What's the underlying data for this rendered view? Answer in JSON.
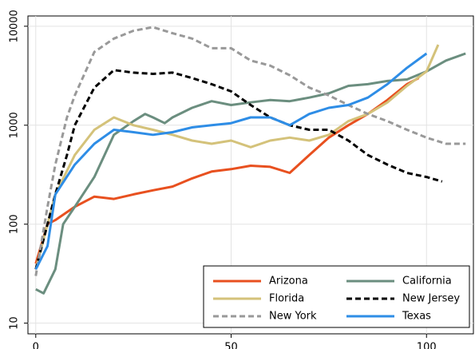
{
  "chart_data": {
    "type": "line",
    "log_y": true,
    "grid": true,
    "legend": "bottom-right",
    "xlim": [
      -2,
      112
    ],
    "xticks": [
      0,
      50,
      100
    ],
    "ylim": [
      7.8,
      12700
    ],
    "yticks": [
      10,
      100,
      1000,
      10000
    ],
    "series": [
      {
        "name": "Arizona",
        "color": "#e8501f",
        "linestyle": "solid",
        "x": [
          0,
          3,
          5,
          10,
          15,
          20,
          25,
          30,
          35,
          40,
          45,
          50,
          55,
          60,
          65,
          70,
          75,
          80,
          85,
          90,
          95,
          98
        ],
        "values": [
          40,
          100,
          110,
          150,
          190,
          180,
          200,
          220,
          240,
          290,
          340,
          360,
          390,
          380,
          330,
          500,
          750,
          1000,
          1300,
          1800,
          2600,
          3000
        ]
      },
      {
        "name": "California",
        "color": "#6b8e7f",
        "linestyle": "solid",
        "x": [
          0,
          2,
          5,
          7,
          10,
          15,
          20,
          25,
          28,
          30,
          33,
          35,
          40,
          45,
          50,
          55,
          60,
          65,
          70,
          75,
          80,
          85,
          90,
          95,
          100,
          105,
          110
        ],
        "values": [
          22,
          20,
          35,
          100,
          150,
          300,
          800,
          1100,
          1300,
          1200,
          1050,
          1200,
          1500,
          1750,
          1600,
          1700,
          1800,
          1750,
          1900,
          2100,
          2500,
          2600,
          2800,
          2900,
          3500,
          4500,
          5300
        ]
      },
      {
        "name": "Florida",
        "color": "#d4c27a",
        "linestyle": "solid",
        "x": [
          0,
          5,
          10,
          15,
          20,
          25,
          30,
          35,
          40,
          45,
          50,
          55,
          60,
          65,
          70,
          75,
          80,
          85,
          90,
          95,
          100,
          103
        ],
        "values": [
          35,
          200,
          500,
          900,
          1200,
          1000,
          900,
          800,
          700,
          650,
          700,
          600,
          700,
          750,
          700,
          800,
          1100,
          1300,
          1700,
          2500,
          3500,
          6500
        ]
      },
      {
        "name": "New Jersey",
        "color": "#000000",
        "linestyle": "dashed",
        "x": [
          0,
          3,
          5,
          8,
          10,
          15,
          20,
          25,
          30,
          35,
          40,
          45,
          50,
          55,
          60,
          65,
          70,
          75,
          80,
          85,
          90,
          95,
          100,
          104
        ],
        "values": [
          35,
          100,
          200,
          500,
          1000,
          2400,
          3600,
          3400,
          3300,
          3400,
          3000,
          2600,
          2200,
          1600,
          1200,
          1000,
          900,
          900,
          700,
          500,
          400,
          330,
          300,
          270
        ]
      },
      {
        "name": "New York",
        "color": "#999999",
        "linestyle": "dashed",
        "x": [
          0,
          3,
          5,
          8,
          10,
          15,
          20,
          25,
          30,
          35,
          40,
          45,
          50,
          55,
          60,
          65,
          70,
          75,
          80,
          85,
          90,
          95,
          100,
          105,
          110
        ],
        "values": [
          30,
          150,
          400,
          1200,
          2000,
          5500,
          7500,
          9000,
          9800,
          8500,
          7500,
          6000,
          6000,
          4500,
          4000,
          3200,
          2400,
          2000,
          1600,
          1300,
          1100,
          900,
          750,
          650,
          650
        ]
      },
      {
        "name": "Texas",
        "color": "#2e8de6",
        "linestyle": "solid",
        "x": [
          0,
          3,
          5,
          10,
          15,
          20,
          25,
          30,
          35,
          40,
          45,
          50,
          55,
          60,
          65,
          70,
          75,
          80,
          85,
          90,
          95,
          100
        ],
        "values": [
          35,
          60,
          200,
          400,
          650,
          900,
          850,
          800,
          850,
          950,
          1000,
          1050,
          1200,
          1200,
          1000,
          1300,
          1500,
          1600,
          1900,
          2600,
          3800,
          5300
        ]
      }
    ]
  }
}
